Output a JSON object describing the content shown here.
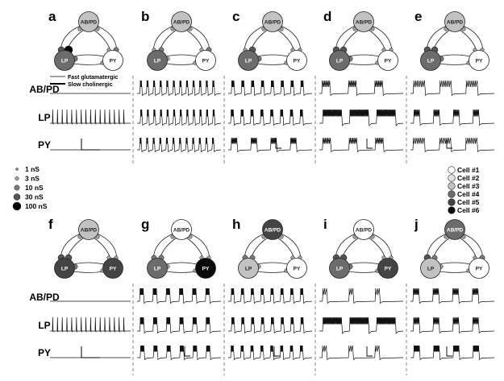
{
  "panels": [
    {
      "letter": "a",
      "nodes": {
        "ab": "#c2c2c2",
        "lp": "#6c6c6c",
        "py": "#ffffff"
      },
      "syn": {
        "lp_ab": 7,
        "ab_lp": 8,
        "py_ab": 3,
        "ab_py": 4,
        "lp_py": 4,
        "py_lp": 3
      },
      "traces": {
        "ab": "flat",
        "lp": "spikes",
        "py": "flat"
      }
    },
    {
      "letter": "b",
      "nodes": {
        "ab": "#c2c2c2",
        "lp": "#6c6c6c",
        "py": "#ffffff"
      },
      "syn": {
        "lp_ab": 3,
        "ab_lp": 4,
        "py_ab": 3,
        "ab_py": 4,
        "lp_py": 3,
        "py_lp": 2
      },
      "traces": {
        "ab": "burst12",
        "lp": "burst12dense",
        "py": "burst12sparse"
      }
    },
    {
      "letter": "c",
      "nodes": {
        "ab": "#c2c2c2",
        "lp": "#6c6c6c",
        "py": "#ffffff"
      },
      "syn": {
        "lp_ab": 3,
        "ab_lp": 7,
        "py_ab": 3,
        "ab_py": 3,
        "lp_py": 4,
        "py_lp": 3
      },
      "traces": {
        "ab": "burst8",
        "lp": "burst8",
        "py": "burst4"
      }
    },
    {
      "letter": "d",
      "nodes": {
        "ab": "#c2c2c2",
        "lp": "#6c6c6c",
        "py": "#ffffff"
      },
      "syn": {
        "lp_ab": 6,
        "ab_lp": 6,
        "py_ab": 3,
        "ab_py": 3,
        "lp_py": 4,
        "py_lp": 3
      },
      "traces": {
        "ab": "burst3",
        "lp": "longburst",
        "py": "burst3"
      }
    },
    {
      "letter": "e",
      "nodes": {
        "ab": "#c2c2c2",
        "lp": "#6c6c6c",
        "py": "#ffffff"
      },
      "syn": {
        "lp_ab": 6,
        "ab_lp": 6,
        "py_ab": 3,
        "ab_py": 3,
        "lp_py": 4,
        "py_lp": 3
      },
      "traces": {
        "ab": "burst3wide",
        "lp": "burst4",
        "py": "burst3wide"
      }
    },
    {
      "letter": "f",
      "nodes": {
        "ab": "#c2c2c2",
        "lp": "#444444",
        "py": "#444444"
      },
      "syn": {
        "lp_ab": 6,
        "ab_lp": 6,
        "py_ab": 3,
        "ab_py": 3,
        "lp_py": 4,
        "py_lp": 3
      },
      "traces": {
        "ab": "flat",
        "lp": "spikes",
        "py": "flat"
      }
    },
    {
      "letter": "g",
      "nodes": {
        "ab": "#ffffff",
        "lp": "#6c6c6c",
        "py": "#0a0a0a"
      },
      "syn": {
        "lp_ab": 4,
        "ab_lp": 4,
        "py_ab": 3,
        "ab_py": 3,
        "lp_py": 3,
        "py_lp": 3
      },
      "traces": {
        "ab": "burst6",
        "lp": "burst6",
        "py": "burst6dense"
      }
    },
    {
      "letter": "h",
      "nodes": {
        "ab": "#444444",
        "lp": "#c2c2c2",
        "py": "#ffffff"
      },
      "syn": {
        "lp_ab": 4,
        "ab_lp": 5,
        "py_ab": 3,
        "ab_py": 3,
        "lp_py": 3,
        "py_lp": 3
      },
      "traces": {
        "ab": "burst8",
        "lp": "burst8",
        "py": "burst8"
      }
    },
    {
      "letter": "i",
      "nodes": {
        "ab": "#ffffff",
        "lp": "#6c6c6c",
        "py": "#444444"
      },
      "syn": {
        "lp_ab": 6,
        "ab_lp": 6,
        "py_ab": 3,
        "ab_py": 3,
        "lp_py": 4,
        "py_lp": 3
      },
      "traces": {
        "ab": "burst3sparse",
        "lp": "longburst",
        "py": "burst3sparse"
      }
    },
    {
      "letter": "j",
      "nodes": {
        "ab": "#6c6c6c",
        "lp": "#c2c2c2",
        "py": "#ffffff"
      },
      "syn": {
        "lp_ab": 6,
        "ab_lp": 5,
        "py_ab": 3,
        "ab_py": 4,
        "lp_py": 3,
        "py_lp": 3
      },
      "traces": {
        "ab": "burst4",
        "lp": "burst4",
        "py": "burst4dense"
      }
    }
  ],
  "node_labels": {
    "ab": "AB/PD",
    "lp": "LP",
    "py": "PY"
  },
  "row_labels": {
    "ab": "AB/PD",
    "lp": "LP",
    "py": "PY"
  },
  "synapse_legend": {
    "fast": "Fast glutamatergic",
    "slow": "Slow cholinergic"
  },
  "size_legend": [
    {
      "label": "1 nS",
      "r": 1.5,
      "color": "#8a8a8a"
    },
    {
      "label": "3 nS",
      "r": 2.3,
      "color": "#a0a0a0"
    },
    {
      "label": "10 nS",
      "r": 3.2,
      "color": "#7a7a7a"
    },
    {
      "label": "30 nS",
      "r": 4.0,
      "color": "#555555"
    },
    {
      "label": "100 nS",
      "r": 5.0,
      "color": "#000000"
    }
  ],
  "cell_legend": [
    {
      "label": "Cell #1",
      "color": "#ffffff"
    },
    {
      "label": "Cell #2",
      "color": "#e3e3e3"
    },
    {
      "label": "Cell #3",
      "color": "#c2c2c2"
    },
    {
      "label": "Cell #4",
      "color": "#6c6c6c"
    },
    {
      "label": "Cell #5",
      "color": "#444444"
    },
    {
      "label": "Cell #6",
      "color": "#0a0a0a"
    }
  ]
}
